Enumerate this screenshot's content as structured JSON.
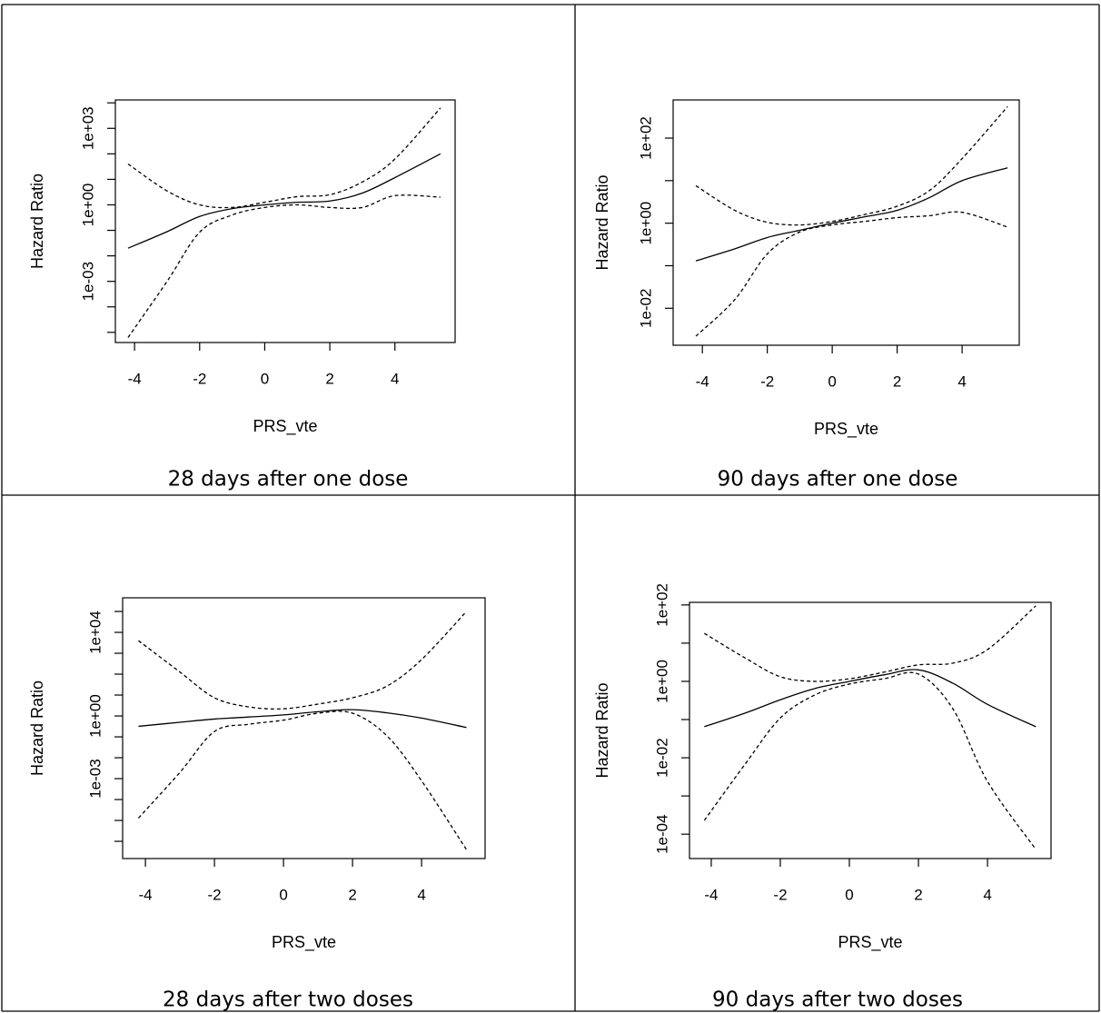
{
  "chart_data": [
    {
      "type": "line",
      "caption": "28 days after one dose",
      "xlabel": "PRS_vte",
      "ylabel": "Hazard Ratio",
      "ylog": true,
      "x": [
        -4.2,
        -3,
        -2,
        -1,
        0,
        1,
        2,
        3,
        4,
        5.4
      ],
      "series": [
        {
          "color": "#000000",
          "dash": "solid",
          "values": [
            0.02,
            0.089,
            0.35,
            0.71,
            1,
            1.26,
            1.41,
            2.9,
            11.7,
            100
          ]
        },
        {
          "color": "#000000",
          "dash": "dashed",
          "values": [
            40,
            3.5,
            1,
            0.79,
            1.26,
            2.1,
            2.5,
            7.9,
            63,
            6300
          ]
        },
        {
          "color": "#000000",
          "dash": "dashed",
          "values": [
            6.3e-06,
            0.001,
            0.085,
            0.4,
            0.79,
            1,
            0.79,
            0.79,
            2.3,
            2.0
          ]
        }
      ],
      "xlim": [
        -4.59,
        5.85
      ],
      "xticks": [
        -4,
        -2,
        0,
        2,
        4
      ],
      "ylim": [
        4e-06,
        13000
      ],
      "yticks": [
        {
          "value": 0.001,
          "label": "1e-03"
        },
        {
          "value": 1,
          "label": "1e+00"
        },
        {
          "value": 1000,
          "label": "1e+03"
        }
      ],
      "yminorticks": [
        1e-05,
        0.0001,
        0.01,
        0.1,
        10,
        100,
        10000
      ]
    },
    {
      "type": "line",
      "caption": "90 days after one dose",
      "xlabel": "PRS_vte",
      "ylabel": "Hazard Ratio",
      "ylog": true,
      "x": [
        -4.2,
        -3,
        -2,
        -1,
        0,
        1,
        2,
        3,
        4,
        5.4
      ],
      "series": [
        {
          "color": "#000000",
          "dash": "solid",
          "values": [
            0.13,
            0.25,
            0.46,
            0.68,
            1,
            1.41,
            2,
            4,
            10,
            20
          ]
        },
        {
          "color": "#000000",
          "dash": "dashed",
          "values": [
            7.6,
            2,
            1.05,
            0.91,
            1.1,
            1.6,
            2.5,
            5.9,
            33,
            550
          ]
        },
        {
          "color": "#000000",
          "dash": "dashed",
          "values": [
            0.0022,
            0.016,
            0.19,
            0.62,
            0.91,
            1.1,
            1.35,
            1.5,
            1.8,
            0.81
          ]
        }
      ],
      "xlim": [
        -4.9,
        5.76
      ],
      "xticks": [
        -4,
        -2,
        0,
        2,
        4
      ],
      "ylim": [
        0.00135,
        790
      ],
      "yticks": [
        {
          "value": 0.01,
          "label": "1e-02"
        },
        {
          "value": 1,
          "label": "1e+00"
        },
        {
          "value": 100,
          "label": "1e+02"
        }
      ],
      "yminorticks": [
        0.1,
        10
      ]
    },
    {
      "type": "line",
      "caption": "28 days after two doses",
      "xlabel": "PRS_vte",
      "ylabel": "Hazard Ratio",
      "ylog": true,
      "x": [
        -4.2,
        -3,
        -2,
        -1,
        0,
        1,
        2,
        3,
        4,
        5.3
      ],
      "series": [
        {
          "color": "#000000",
          "dash": "solid",
          "values": [
            0.32,
            0.5,
            0.71,
            0.89,
            1.12,
            1.6,
            2,
            1.41,
            0.79,
            0.28
          ]
        },
        {
          "color": "#000000",
          "dash": "dashed",
          "values": [
            4000,
            126,
            7.4,
            2.7,
            2.2,
            3.7,
            7.4,
            27,
            500,
            100000
          ]
        },
        {
          "color": "#000000",
          "dash": "dashed",
          "values": [
            1.3e-05,
            0.002,
            0.18,
            0.4,
            0.63,
            1.35,
            1.35,
            0.11,
            0.00079,
            4e-07
          ]
        }
      ],
      "xlim": [
        -4.66,
        5.84
      ],
      "xticks": [
        -4,
        -2,
        0,
        2,
        4
      ],
      "ylim": [
        1.5e-07,
        450000
      ],
      "yticks": [
        {
          "value": 0.001,
          "label": "1e-03"
        },
        {
          "value": 1,
          "label": "1e+00"
        },
        {
          "value": 10000,
          "label": "1e+04"
        }
      ],
      "yminorticks": [
        1e-06,
        1e-05,
        0.0001,
        0.01,
        0.1,
        10,
        100,
        1000,
        100000
      ]
    },
    {
      "type": "line",
      "caption": "90 days after two doses",
      "xlabel": "PRS_vte",
      "ylabel": "Hazard Ratio",
      "ylog": true,
      "x": [
        -4.2,
        -3,
        -2,
        -1,
        0,
        1,
        2,
        3,
        4,
        5.4
      ],
      "series": [
        {
          "color": "#000000",
          "dash": "solid",
          "values": [
            0.065,
            0.15,
            0.33,
            0.65,
            1,
            1.48,
            2,
            0.89,
            0.25,
            0.065
          ]
        },
        {
          "color": "#000000",
          "dash": "dashed",
          "values": [
            18,
            4,
            1.32,
            1,
            1.17,
            1.74,
            2.7,
            3,
            6.8,
            95
          ]
        },
        {
          "color": "#000000",
          "dash": "dashed",
          "values": [
            0.00023,
            0.0072,
            0.11,
            0.44,
            0.85,
            1.17,
            1.55,
            0.19,
            0.0024,
            4e-05
          ]
        }
      ],
      "xlim": [
        -4.63,
        5.84
      ],
      "xticks": [
        -4,
        -2,
        0,
        2,
        4
      ],
      "ylim": [
        2.3e-05,
        117
      ],
      "yticks": [
        {
          "value": 0.0001,
          "label": "1e-04"
        },
        {
          "value": 0.01,
          "label": "1e-02"
        },
        {
          "value": 1,
          "label": "1e+00"
        },
        {
          "value": 100,
          "label": "1e+02"
        }
      ],
      "yminorticks": [
        0.001,
        0.1,
        10
      ]
    }
  ]
}
